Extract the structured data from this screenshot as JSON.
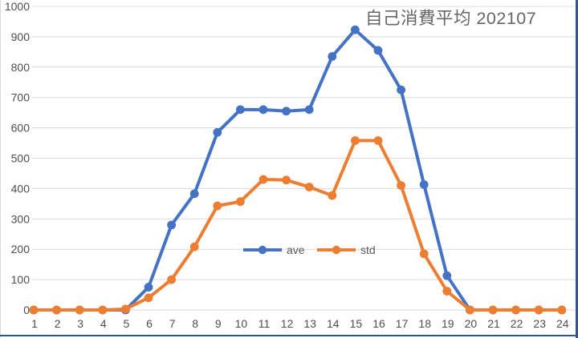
{
  "window": {
    "frame_border_color": "#2F5496",
    "left_edge_color": "#D9D9D9",
    "background": "#FFFFFF"
  },
  "chart": {
    "title_color": "#666666",
    "gridline_color": "#D9D9D9",
    "axis_label_color": "#4D4D4D",
    "legend_label_color": "#595959"
  },
  "chart_data": {
    "type": "line",
    "title": "自己消費平均  202107",
    "x": [
      1,
      2,
      3,
      4,
      5,
      6,
      7,
      8,
      9,
      10,
      11,
      12,
      13,
      14,
      15,
      16,
      17,
      18,
      19,
      20,
      21,
      22,
      23,
      24
    ],
    "series": [
      {
        "name": "ave",
        "color": "#4472C4",
        "marker": "circle",
        "values": [
          0,
          0,
          0,
          0,
          0,
          75,
          280,
          383,
          585,
          660,
          660,
          655,
          660,
          835,
          923,
          855,
          725,
          413,
          113,
          0,
          0,
          0,
          0,
          0
        ]
      },
      {
        "name": "std",
        "color": "#ED7D31",
        "marker": "circle",
        "values": [
          0,
          0,
          0,
          0,
          3,
          40,
          100,
          208,
          343,
          357,
          430,
          428,
          405,
          377,
          558,
          558,
          410,
          185,
          62,
          0,
          0,
          0,
          0,
          0
        ]
      }
    ],
    "xlabel": "",
    "ylabel": "",
    "ylim": [
      0,
      1000
    ],
    "ytick_step": 100,
    "xtick_labels": [
      "1",
      "2",
      "3",
      "4",
      "5",
      "6",
      "7",
      "8",
      "9",
      "10",
      "11",
      "12",
      "13",
      "14",
      "15",
      "16",
      "17",
      "18",
      "19",
      "20",
      "21",
      "22",
      "23",
      "24"
    ],
    "ytick_labels": [
      "0",
      "100",
      "200",
      "300",
      "400",
      "500",
      "600",
      "700",
      "800",
      "900",
      "1000"
    ],
    "grid": true,
    "legend_position": "inside-bottom-center"
  }
}
